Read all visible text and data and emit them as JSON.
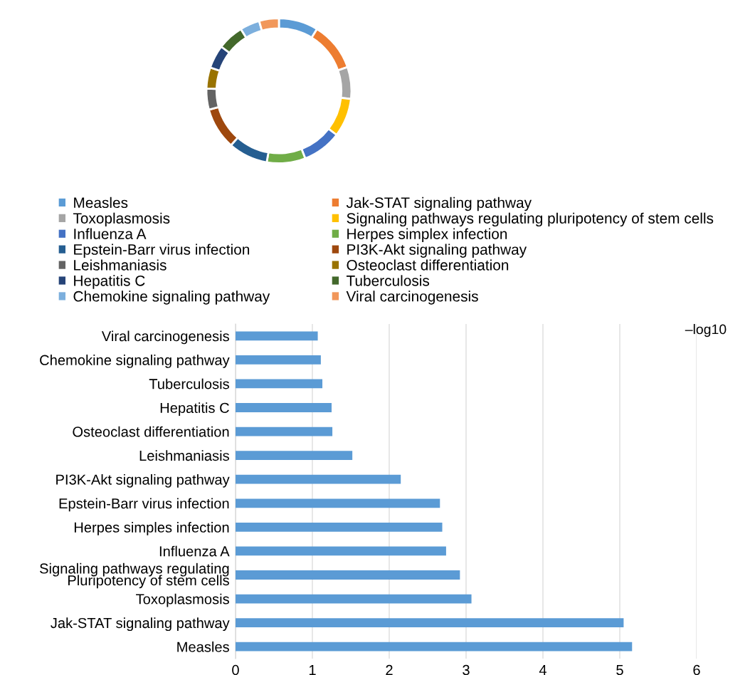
{
  "chart_data": [
    {
      "type": "donut",
      "legend": "bottom",
      "categories": [
        "Measles",
        "Jak-STAT signaling pathway",
        "Toxoplasmosis",
        "Signaling pathways regulating pluripotency of stem cells",
        "Influenza A",
        "Herpes simplex infection",
        "Epstein-Barr virus infection",
        "PI3K-Akt signaling pathway",
        "Leishmaniasis",
        "Osteoclast differentiation",
        "Hepatitis C",
        "Tuberculosis",
        "Chemokine signaling pathway",
        "Viral carcinogenesis"
      ],
      "values": [
        8.8,
        10.9,
        7.1,
        8.6,
        8.7,
        8.6,
        8.8,
        9.3,
        4.7,
        4.7,
        5.2,
        5.8,
        4.4,
        4.4
      ],
      "colors": [
        "#5b9bd5",
        "#ed7d31",
        "#a5a5a5",
        "#ffc000",
        "#4472c4",
        "#70ad47",
        "#255e91",
        "#9e480e",
        "#636363",
        "#997300",
        "#264478",
        "#43682b",
        "#7cafdd",
        "#f1975a"
      ]
    },
    {
      "type": "bar",
      "orientation": "horizontal",
      "categories": [
        "Viral carcinogenesis",
        "Chemokine signaling pathway",
        "Tuberculosis",
        "Hepatitis C",
        "Osteoclast differentiation",
        "Leishmaniasis",
        "PI3K-Akt signaling pathway",
        "Epstein-Barr virus infection",
        "Herpes simples infection",
        "Influenza A",
        "Signaling pathways regulating\nPluripotency of stem cells",
        "Toxoplasmosis",
        "Jak-STAT signaling pathway",
        "Measles"
      ],
      "values": [
        1.07,
        1.11,
        1.13,
        1.25,
        1.26,
        1.52,
        2.15,
        2.66,
        2.69,
        2.74,
        2.92,
        3.07,
        5.05,
        5.16
      ],
      "color": "#5b9bd5",
      "xlim": [
        0,
        6
      ],
      "xticks": [
        0,
        1,
        2,
        3,
        4,
        5,
        6
      ],
      "grid": "x",
      "annotations": [
        "–log10"
      ]
    }
  ]
}
